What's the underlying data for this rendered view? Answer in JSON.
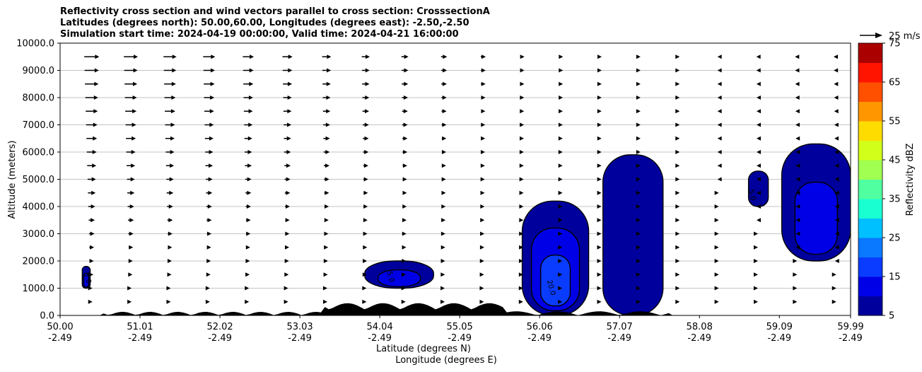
{
  "title": {
    "line1": "Reflectivity cross section and wind vectors parallel to cross section: CrosssectionA",
    "line2": "Latitudes (degrees north): 50.00,60.00, Longitudes (degrees east): -2.50,-2.50",
    "line3": "Simulation start time: 2024-04-19 00:00:00, Valid time: 2024-04-21 16:00:00"
  },
  "chart_data": {
    "type": "heatmap",
    "xlabel_lat": "Latitude (degrees N)",
    "xlabel_lon": "Longitude (degrees E)",
    "ylabel": "Altitude (meters)",
    "xlim": [
      50.0,
      59.99
    ],
    "ylim": [
      0,
      10000
    ],
    "x_ticks": [
      {
        "lat": "50.00",
        "lon": "-2.49",
        "v": 50.0
      },
      {
        "lat": "51.01",
        "lon": "-2.49",
        "v": 51.01
      },
      {
        "lat": "52.02",
        "lon": "-2.49",
        "v": 52.02
      },
      {
        "lat": "53.03",
        "lon": "-2.49",
        "v": 53.03
      },
      {
        "lat": "54.04",
        "lon": "-2.49",
        "v": 54.04
      },
      {
        "lat": "55.05",
        "lon": "-2.49",
        "v": 55.05
      },
      {
        "lat": "56.06",
        "lon": "-2.49",
        "v": 56.06
      },
      {
        "lat": "57.07",
        "lon": "-2.49",
        "v": 57.07
      },
      {
        "lat": "58.08",
        "lon": "-2.49",
        "v": 58.08
      },
      {
        "lat": "59.09",
        "lon": "-2.49",
        "v": 59.09
      },
      {
        "lat": "59.99",
        "lon": "-2.49",
        "v": 59.99
      }
    ],
    "y_ticks": [
      "0.0",
      "1000.0",
      "2000.0",
      "3000.0",
      "4000.0",
      "5000.0",
      "6000.0",
      "7000.0",
      "8000.0",
      "9000.0",
      "10000.0"
    ],
    "grid": "horizontal",
    "colorbar": {
      "label": "Reflectivity dBZ",
      "range": [
        5,
        75
      ],
      "ticks": [
        "5",
        "15",
        "25",
        "35",
        "45",
        "55",
        "65",
        "75"
      ],
      "colors": [
        "#00009c",
        "#0000e6",
        "#0a3cff",
        "#0a78ff",
        "#00c0ff",
        "#1affd2",
        "#50ffa0",
        "#a0ff50",
        "#d2ff1a",
        "#ffdc00",
        "#ff9600",
        "#ff5000",
        "#ff1400",
        "#aa0000"
      ]
    },
    "wind_key": "25 m/s",
    "contour_labels": [
      "20.0",
      "5.0",
      "5.0",
      "5.0"
    ],
    "reflectivity_cells": [
      {
        "lat_range": [
          50.28,
          50.38
        ],
        "alt_range": [
          1000,
          1800
        ],
        "max_dbz": 15
      },
      {
        "lat_range": [
          53.85,
          54.72
        ],
        "alt_range": [
          1000,
          2000
        ],
        "max_dbz": 15
      },
      {
        "lat_range": [
          55.84,
          56.68
        ],
        "alt_range": [
          0,
          4200
        ],
        "max_dbz": 22
      },
      {
        "lat_range": [
          56.86,
          57.62
        ],
        "alt_range": [
          0,
          5900
        ],
        "max_dbz": 12
      },
      {
        "lat_range": [
          58.7,
          58.95
        ],
        "alt_range": [
          4000,
          5300
        ],
        "max_dbz": 10
      },
      {
        "lat_range": [
          59.12,
          59.99
        ],
        "alt_range": [
          2000,
          6300
        ],
        "max_dbz": 15
      }
    ],
    "terrain_max_alt_m": 600
  }
}
